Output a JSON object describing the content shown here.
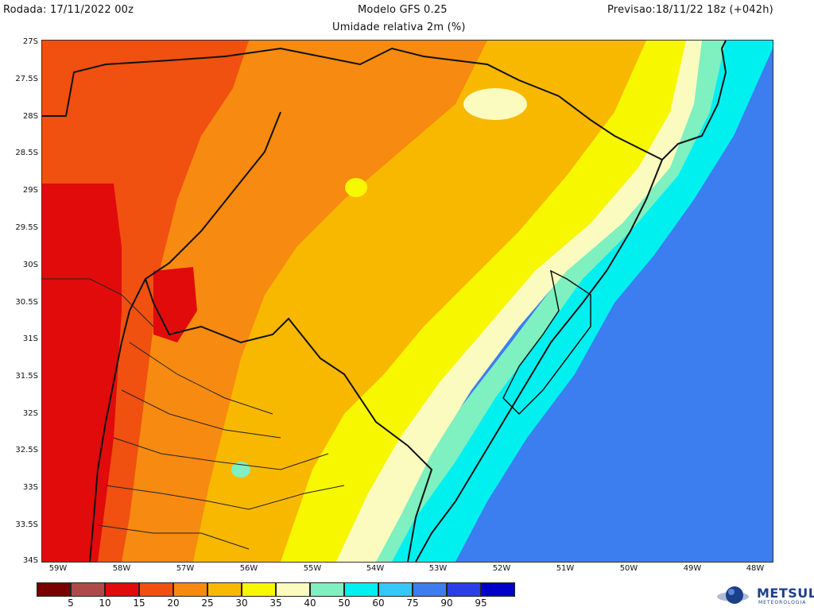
{
  "header": {
    "run": "Rodada: 17/11/2022 00z",
    "model": "Modelo GFS 0.25",
    "forecast": "Previsao:18/11/22 18z (+042h)",
    "variable": "Umidade relativa 2m (%)"
  },
  "axes": {
    "lat_ticks": [
      "27S",
      "27.5S",
      "28S",
      "28.5S",
      "29S",
      "29.5S",
      "30S",
      "30.5S",
      "31S",
      "31.5S",
      "32S",
      "32.5S",
      "33S",
      "33.5S",
      "34S"
    ],
    "lon_ticks": [
      "59W",
      "58W",
      "57W",
      "56W",
      "55W",
      "54W",
      "53W",
      "52W",
      "51W",
      "50W",
      "49W",
      "48W"
    ]
  },
  "colorbar": {
    "colors": [
      "#7a0000",
      "#b04a4a",
      "#e10b0b",
      "#f05010",
      "#f78a10",
      "#f8b800",
      "#f7f700",
      "#fbfbbf",
      "#7ff0c0",
      "#00f0f0",
      "#33c8f8",
      "#3c7df0",
      "#2c3fe6",
      "#0000c8"
    ],
    "labels": [
      "5",
      "10",
      "15",
      "20",
      "25",
      "30",
      "35",
      "40",
      "50",
      "60",
      "75",
      "90",
      "95"
    ]
  },
  "logo": {
    "name": "METSUL",
    "subtitle": "METEOROLOGIA"
  }
}
